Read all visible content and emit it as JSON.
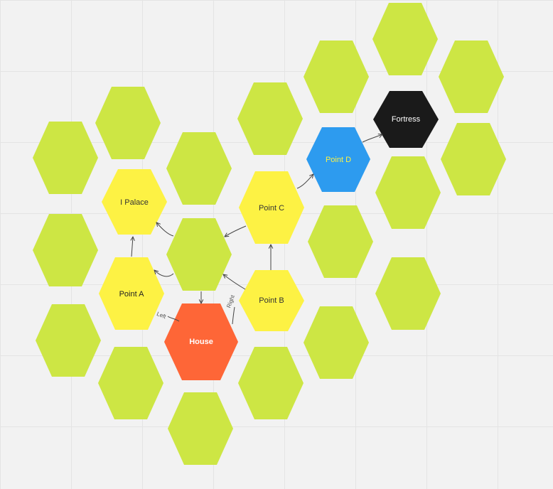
{
  "colors": {
    "filler": "#cde644",
    "waypoint": "#fdf244",
    "start": "#fe6637",
    "target": "#fe6637",
    "checkpoint": "#2d9bef",
    "goal": "#1a1a1a",
    "arrow": "#444444"
  },
  "nodes": {
    "palace": {
      "label": "I Palace"
    },
    "point_a": {
      "label": "Point A"
    },
    "point_b": {
      "label": "Point B"
    },
    "point_c": {
      "label": "Point C"
    },
    "point_d": {
      "label": "Point D"
    },
    "house": {
      "label": "House"
    },
    "fortress": {
      "label": "Fortress"
    }
  },
  "edges": {
    "left_label": "Left",
    "right_label": "Right"
  }
}
